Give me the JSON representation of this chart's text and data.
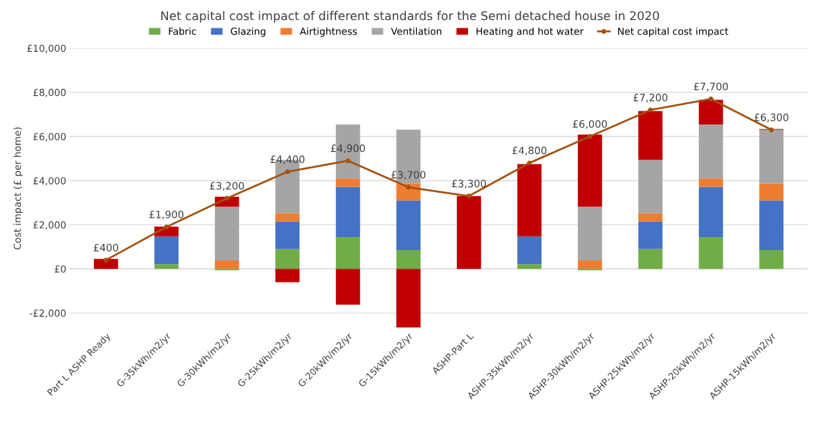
{
  "chart_data": {
    "type": "bar",
    "title": "Net capital cost impact of different standards for the Semi detached house in 2020",
    "ylabel": "Cost impact (£ per home)",
    "categories": [
      "Part L ASHP Ready",
      "G-35kWh/m2/yr",
      "G-30kWh/m2/yr",
      "G-25kWh/m2/yr",
      "G-20kWh/m2/yr",
      "G-15kWh/m2/yr",
      "ASHP-Part L",
      "ASHP-35kWh/m2/yr",
      "ASHP-30kWh/m2/yr",
      "ASHP-25kWh/m2/yr",
      "ASHP-20kWh/m2/yr",
      "ASHP-15kWh/m2/yr"
    ],
    "stacked": true,
    "series": [
      {
        "name": "Fabric",
        "color": "#70ad47",
        "values": [
          0,
          220,
          -60,
          900,
          1450,
          850,
          0,
          220,
          -60,
          900,
          1450,
          850
        ]
      },
      {
        "name": "Glazing",
        "color": "#4472c4",
        "values": [
          0,
          1250,
          0,
          1250,
          2270,
          2250,
          0,
          1250,
          0,
          1250,
          2270,
          2250
        ]
      },
      {
        "name": "Airtightness",
        "color": "#ed7d31",
        "values": [
          0,
          0,
          380,
          380,
          380,
          770,
          0,
          0,
          380,
          380,
          380,
          770
        ]
      },
      {
        "name": "Ventilation",
        "color": "#a5a5a5",
        "values": [
          0,
          0,
          2440,
          2410,
          2440,
          2440,
          0,
          0,
          2440,
          2410,
          2440,
          2440
        ]
      },
      {
        "name": "Heating and hot water",
        "color": "#c00000",
        "values": [
          450,
          450,
          450,
          -600,
          -1620,
          -2650,
          3300,
          3280,
          3270,
          2210,
          1120,
          30
        ]
      },
      {
        "name": "Net capital cost impact",
        "type": "line",
        "color": "#a5520f",
        "marker": "circle",
        "values": [
          400,
          1900,
          3200,
          4400,
          4900,
          3700,
          3300,
          4800,
          6000,
          7200,
          7700,
          6300
        ],
        "value_labels": [
          "£400",
          "£1,900",
          "£3,200",
          "£4,400",
          "£4,900",
          "£3,700",
          "£3,300",
          "£4,800",
          "£6,000",
          "£7,200",
          "£7,700",
          "£6,300"
        ]
      }
    ],
    "ylim": [
      -2700,
      10000
    ],
    "yticks": [
      {
        "value": -2000,
        "label": "-£2,000"
      },
      {
        "value": 0,
        "label": "£0"
      },
      {
        "value": 2000,
        "label": "£2,000"
      },
      {
        "value": 4000,
        "label": "£4,000"
      },
      {
        "value": 6000,
        "label": "£6,000"
      },
      {
        "value": 8000,
        "label": "£8,000"
      },
      {
        "value": 10000,
        "label": "£10,000"
      }
    ],
    "grid": "y",
    "legend": "top"
  }
}
